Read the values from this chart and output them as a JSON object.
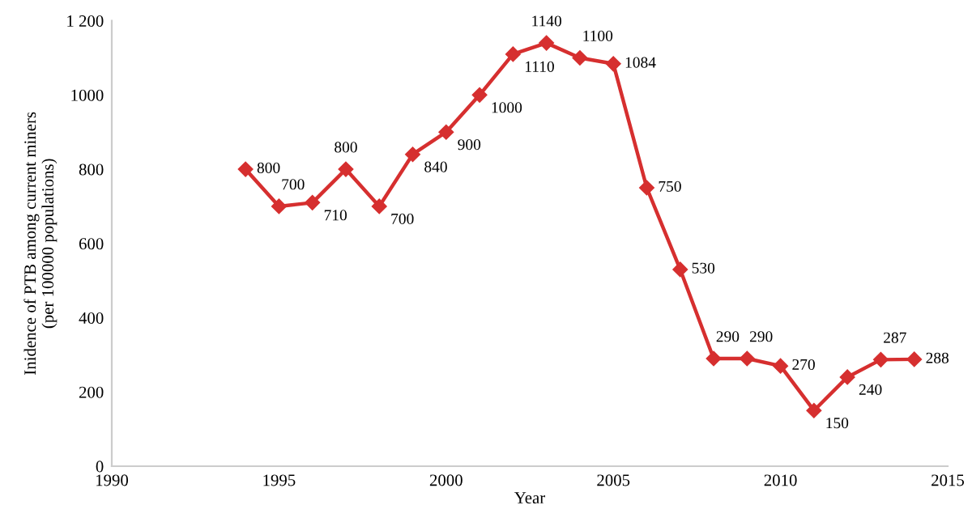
{
  "chart_data": {
    "type": "line",
    "xlabel": "Year",
    "ylabel": "Inidence of PTB among current miners\n(per 100000 populations)",
    "x": [
      1994,
      1995,
      1996,
      1997,
      1998,
      1999,
      2000,
      2001,
      2002,
      2003,
      2004,
      2005,
      2006,
      2007,
      2008,
      2009,
      2010,
      2011,
      2012,
      2013,
      2014
    ],
    "series": [
      {
        "color": "#d62f2f",
        "values": [
          800,
          700,
          710,
          800,
          700,
          840,
          900,
          1000,
          1110,
          1140,
          1100,
          1084,
          750,
          530,
          290,
          290,
          270,
          150,
          240,
          287,
          288
        ]
      }
    ],
    "data_labels": true,
    "marker": "diamond",
    "line_style": "solid",
    "grid": false,
    "legend": false,
    "xlim": [
      1990,
      2015
    ],
    "xticks": [
      1990,
      1995,
      2000,
      2005,
      2010,
      2015
    ],
    "ylim": [
      0,
      1200
    ],
    "yticks": [
      0,
      200,
      400,
      600,
      800,
      1000,
      {
        "value": 1200,
        "label": "1 200"
      }
    ]
  }
}
